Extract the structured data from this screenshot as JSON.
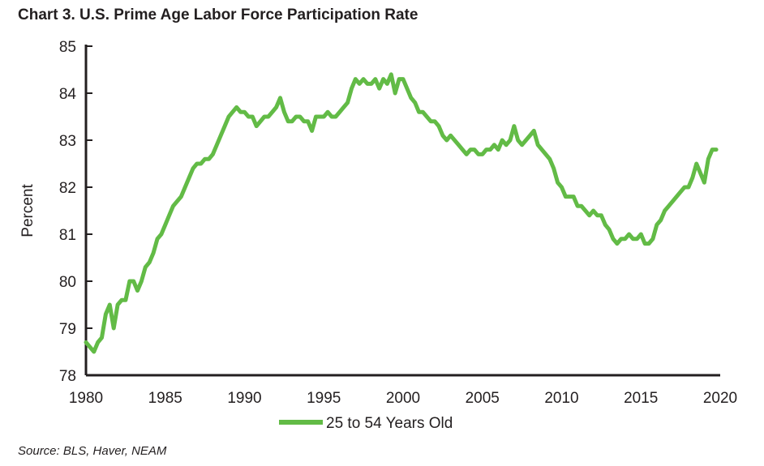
{
  "page": {
    "title": "Chart 3. U.S. Prime Age Labor Force Participation Rate",
    "source": "Source: BLS, Haver, NEAM"
  },
  "chart_data": {
    "type": "line",
    "title": "Chart 3. U.S. Prime Age Labor Force Participation Rate",
    "xlabel": "",
    "ylabel": "Percent",
    "xlim": [
      1980,
      2020
    ],
    "ylim": [
      78,
      85
    ],
    "x_ticks": [
      1980,
      1985,
      1990,
      1995,
      2000,
      2005,
      2010,
      2015,
      2020
    ],
    "y_ticks": [
      78,
      79,
      80,
      81,
      82,
      83,
      84,
      85
    ],
    "grid": false,
    "legend_position": "bottom-center",
    "series": [
      {
        "name": "25 to 54 Years Old",
        "color": "#62bb46",
        "x": [
          1980.0,
          1980.25,
          1980.5,
          1980.75,
          1981.0,
          1981.25,
          1981.5,
          1981.75,
          1982.0,
          1982.25,
          1982.5,
          1982.75,
          1983.0,
          1983.25,
          1983.5,
          1983.75,
          1984.0,
          1984.25,
          1984.5,
          1984.75,
          1985.0,
          1985.25,
          1985.5,
          1985.75,
          1986.0,
          1986.25,
          1986.5,
          1986.75,
          1987.0,
          1987.25,
          1987.5,
          1987.75,
          1988.0,
          1988.25,
          1988.5,
          1988.75,
          1989.0,
          1989.25,
          1989.5,
          1989.75,
          1990.0,
          1990.25,
          1990.5,
          1990.75,
          1991.0,
          1991.25,
          1991.5,
          1991.75,
          1992.0,
          1992.25,
          1992.5,
          1992.75,
          1993.0,
          1993.25,
          1993.5,
          1993.75,
          1994.0,
          1994.25,
          1994.5,
          1994.75,
          1995.0,
          1995.25,
          1995.5,
          1995.75,
          1996.0,
          1996.25,
          1996.5,
          1996.75,
          1997.0,
          1997.25,
          1997.5,
          1997.75,
          1998.0,
          1998.25,
          1998.5,
          1998.75,
          1999.0,
          1999.25,
          1999.5,
          1999.75,
          2000.0,
          2000.25,
          2000.5,
          2000.75,
          2001.0,
          2001.25,
          2001.5,
          2001.75,
          2002.0,
          2002.25,
          2002.5,
          2002.75,
          2003.0,
          2003.25,
          2003.5,
          2003.75,
          2004.0,
          2004.25,
          2004.5,
          2004.75,
          2005.0,
          2005.25,
          2005.5,
          2005.75,
          2006.0,
          2006.25,
          2006.5,
          2006.75,
          2007.0,
          2007.25,
          2007.5,
          2007.75,
          2008.0,
          2008.25,
          2008.5,
          2008.75,
          2009.0,
          2009.25,
          2009.5,
          2009.75,
          2010.0,
          2010.25,
          2010.5,
          2010.75,
          2011.0,
          2011.25,
          2011.5,
          2011.75,
          2012.0,
          2012.25,
          2012.5,
          2012.75,
          2013.0,
          2013.25,
          2013.5,
          2013.75,
          2014.0,
          2014.25,
          2014.5,
          2014.75,
          2015.0,
          2015.25,
          2015.5,
          2015.75,
          2016.0,
          2016.25,
          2016.5,
          2016.75,
          2017.0,
          2017.25,
          2017.5,
          2017.75,
          2018.0,
          2018.25,
          2018.5,
          2018.75,
          2019.0,
          2019.25,
          2019.5,
          2019.75
        ],
        "values": [
          78.7,
          78.6,
          78.5,
          78.7,
          78.8,
          79.3,
          79.5,
          79.0,
          79.5,
          79.6,
          79.6,
          80.0,
          80.0,
          79.8,
          80.0,
          80.3,
          80.4,
          80.6,
          80.9,
          81.0,
          81.2,
          81.4,
          81.6,
          81.7,
          81.8,
          82.0,
          82.2,
          82.4,
          82.5,
          82.5,
          82.6,
          82.6,
          82.7,
          82.9,
          83.1,
          83.3,
          83.5,
          83.6,
          83.7,
          83.6,
          83.6,
          83.5,
          83.5,
          83.3,
          83.4,
          83.5,
          83.5,
          83.6,
          83.7,
          83.9,
          83.6,
          83.4,
          83.4,
          83.5,
          83.5,
          83.4,
          83.4,
          83.2,
          83.5,
          83.5,
          83.5,
          83.6,
          83.5,
          83.5,
          83.6,
          83.7,
          83.8,
          84.1,
          84.3,
          84.2,
          84.3,
          84.2,
          84.2,
          84.3,
          84.1,
          84.3,
          84.2,
          84.4,
          84.0,
          84.3,
          84.3,
          84.1,
          83.9,
          83.8,
          83.6,
          83.6,
          83.5,
          83.4,
          83.4,
          83.3,
          83.1,
          83.0,
          83.1,
          83.0,
          82.9,
          82.8,
          82.7,
          82.8,
          82.8,
          82.7,
          82.7,
          82.8,
          82.8,
          82.9,
          82.8,
          83.0,
          82.9,
          83.0,
          83.3,
          83.0,
          82.9,
          83.0,
          83.1,
          83.2,
          82.9,
          82.8,
          82.7,
          82.6,
          82.4,
          82.1,
          82.0,
          81.8,
          81.8,
          81.8,
          81.6,
          81.6,
          81.5,
          81.4,
          81.5,
          81.4,
          81.4,
          81.2,
          81.1,
          80.9,
          80.8,
          80.9,
          80.9,
          81.0,
          80.9,
          80.9,
          81.0,
          80.8,
          80.8,
          80.9,
          81.2,
          81.3,
          81.5,
          81.6,
          81.7,
          81.8,
          81.9,
          82.0,
          82.0,
          82.2,
          82.5,
          82.3,
          82.1,
          82.6,
          82.8,
          82.8
        ]
      }
    ]
  }
}
